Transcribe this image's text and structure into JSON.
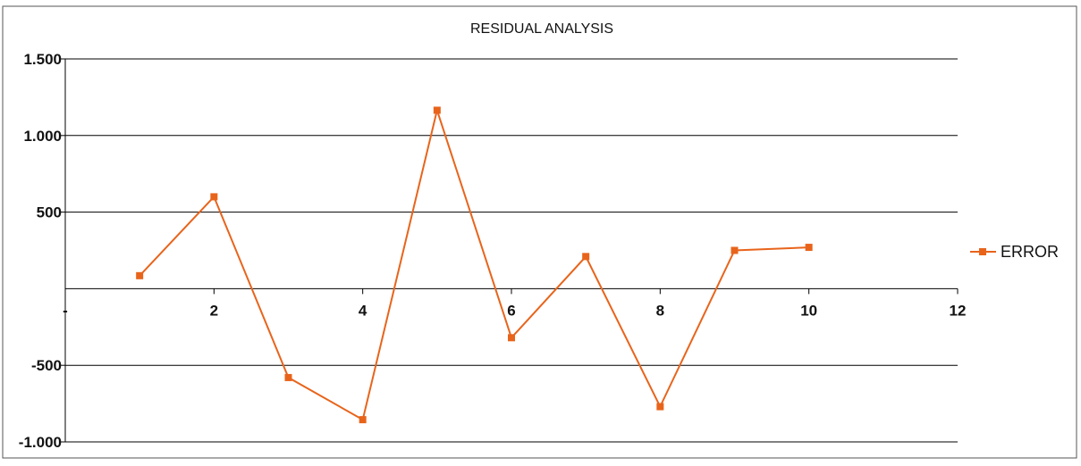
{
  "chart_data": {
    "type": "line",
    "title": "RESIDUAL ANALYSIS",
    "xlabel": "",
    "ylabel": "",
    "xlim": [
      0,
      12
    ],
    "ylim": [
      -1000,
      1500
    ],
    "x_ticks": [
      {
        "value": 0,
        "label": "-"
      },
      {
        "value": 2,
        "label": "2"
      },
      {
        "value": 4,
        "label": "4"
      },
      {
        "value": 6,
        "label": "6"
      },
      {
        "value": 8,
        "label": "8"
      },
      {
        "value": 10,
        "label": "10"
      },
      {
        "value": 12,
        "label": "12"
      }
    ],
    "y_ticks": [
      {
        "value": 1500,
        "label": "1.500"
      },
      {
        "value": 1000,
        "label": "1.000"
      },
      {
        "value": 500,
        "label": "500"
      },
      {
        "value": -500,
        "label": "-500"
      },
      {
        "value": -1000,
        "label": "-1.000"
      }
    ],
    "grid": "horizontal",
    "legend_position": "right",
    "series": [
      {
        "name": "ERROR",
        "color": "#e8641b",
        "x": [
          1,
          2,
          3,
          4,
          5,
          6,
          7,
          8,
          9,
          10
        ],
        "y": [
          85,
          600,
          -580,
          -855,
          1165,
          -320,
          210,
          -770,
          250,
          270
        ]
      }
    ]
  }
}
